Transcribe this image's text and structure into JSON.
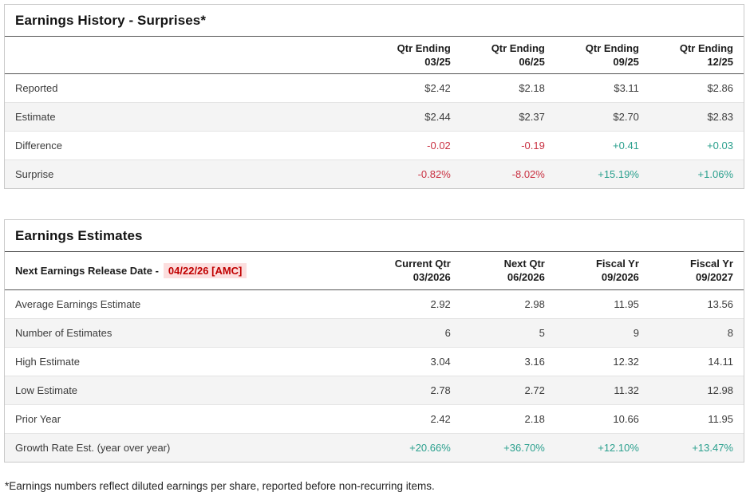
{
  "colors": {
    "positive": "#2ba08e",
    "negative": "#c93142",
    "release_date_text": "#c00000",
    "release_date_bg": "#fcdede"
  },
  "earnings_history": {
    "title": "Earnings History - Surprises*",
    "columns": [
      {
        "line1": "Qtr Ending",
        "line2": "03/25"
      },
      {
        "line1": "Qtr Ending",
        "line2": "06/25"
      },
      {
        "line1": "Qtr Ending",
        "line2": "09/25"
      },
      {
        "line1": "Qtr Ending",
        "line2": "12/25"
      }
    ],
    "rows": [
      {
        "label": "Reported",
        "values": [
          "$2.42",
          "$2.18",
          "$3.11",
          "$2.86"
        ]
      },
      {
        "label": "Estimate",
        "values": [
          "$2.44",
          "$2.37",
          "$2.70",
          "$2.83"
        ]
      },
      {
        "label": "Difference",
        "values": [
          "-0.02",
          "-0.19",
          "+0.41",
          "+0.03"
        ]
      },
      {
        "label": "Surprise",
        "values": [
          "-0.82%",
          "-8.02%",
          "+15.19%",
          "+1.06%"
        ]
      }
    ]
  },
  "earnings_estimates": {
    "title": "Earnings Estimates",
    "release_date_label": "Next Earnings Release Date -",
    "release_date_value": "04/22/26 [AMC]",
    "columns": [
      {
        "line1": "Current Qtr",
        "line2": "03/2026"
      },
      {
        "line1": "Next Qtr",
        "line2": "06/2026"
      },
      {
        "line1": "Fiscal Yr",
        "line2": "09/2026"
      },
      {
        "line1": "Fiscal Yr",
        "line2": "09/2027"
      }
    ],
    "rows": [
      {
        "label": "Average Earnings Estimate",
        "values": [
          "2.92",
          "2.98",
          "11.95",
          "13.56"
        ]
      },
      {
        "label": "Number of Estimates",
        "values": [
          "6",
          "5",
          "9",
          "8"
        ]
      },
      {
        "label": "High Estimate",
        "values": [
          "3.04",
          "3.16",
          "12.32",
          "14.11"
        ]
      },
      {
        "label": "Low Estimate",
        "values": [
          "2.78",
          "2.72",
          "11.32",
          "12.98"
        ]
      },
      {
        "label": "Prior Year",
        "values": [
          "2.42",
          "2.18",
          "10.66",
          "11.95"
        ]
      },
      {
        "label": "Growth Rate Est. (year over year)",
        "values": [
          "+20.66%",
          "+36.70%",
          "+12.10%",
          "+13.47%"
        ]
      }
    ]
  },
  "footnote": "*Earnings numbers reflect diluted earnings per share, reported before non-recurring items."
}
